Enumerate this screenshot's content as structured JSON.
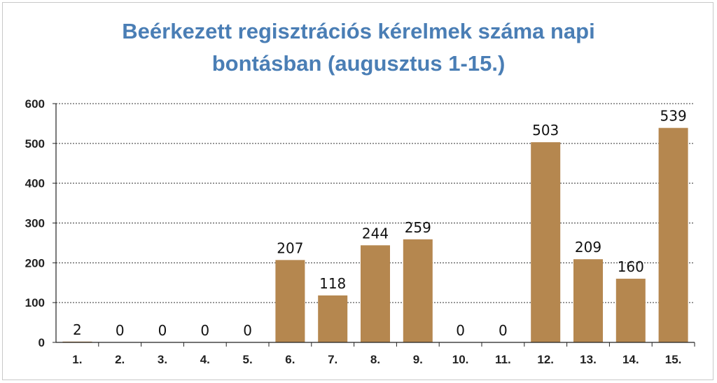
{
  "chart_data": {
    "type": "bar",
    "title": "Beérkezett regisztrációs kérelmek száma napi\nbontásban (augusztus 1-15.)",
    "categories": [
      "1.",
      "2.",
      "3.",
      "4.",
      "5.",
      "6.",
      "7.",
      "8.",
      "9.",
      "10.",
      "11.",
      "12.",
      "13.",
      "14.",
      "15."
    ],
    "values": [
      2,
      0,
      0,
      0,
      0,
      207,
      118,
      244,
      259,
      0,
      0,
      503,
      209,
      160,
      539
    ],
    "ylim": [
      0,
      600
    ],
    "yticks": [
      0,
      100,
      200,
      300,
      400,
      500,
      600
    ],
    "grid": true,
    "colors": {
      "bar": "#b5874f",
      "title": "#4a7eb5"
    }
  }
}
